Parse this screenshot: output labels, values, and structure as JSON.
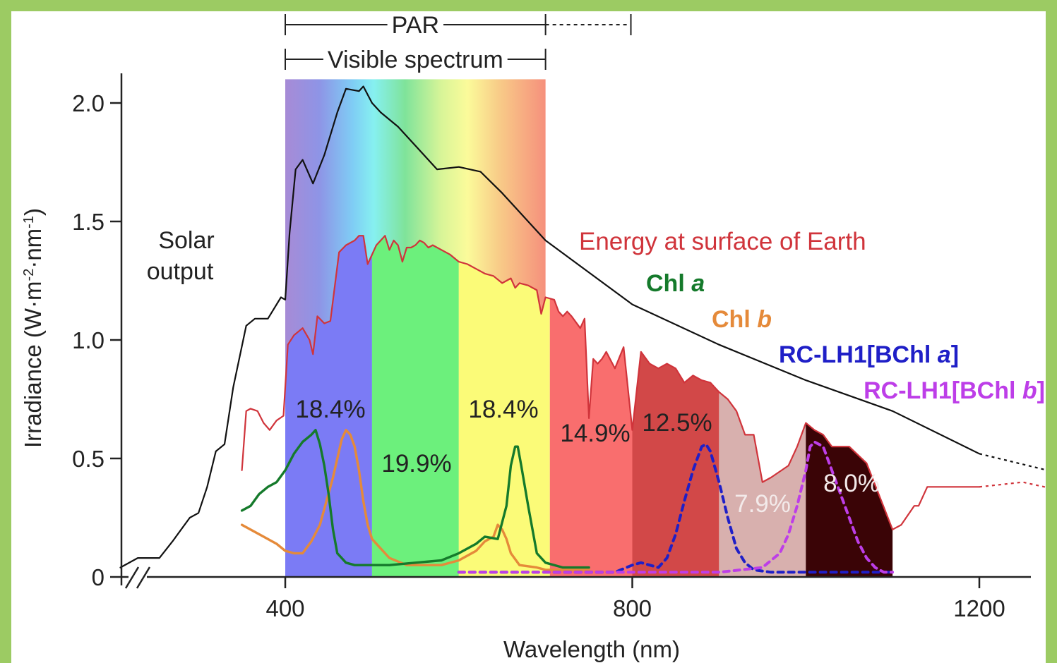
{
  "chart_data": {
    "type": "line",
    "xlabel": "Wavelength (nm)",
    "ylabel": "Irradiance (W·m-2·nm-1)",
    "xlim": [
      210,
      1290
    ],
    "ylim": [
      0,
      2.1
    ],
    "x_ticks": [
      400,
      800,
      1200
    ],
    "x_tick_labels": [
      "400",
      "800",
      "1200"
    ],
    "y_ticks": [
      0,
      0.5,
      1.0,
      1.5,
      2.0
    ],
    "y_tick_labels": [
      "0",
      "0.5",
      "1.0",
      "1.5",
      "2.0"
    ],
    "axis_break": true,
    "ranges": [
      {
        "label": "PAR",
        "from": 400,
        "to": 700,
        "dotted_to": 800
      },
      {
        "label": "Visible spectrum",
        "from": 400,
        "to": 700
      }
    ],
    "visible_spectrum_band": {
      "from": 400,
      "to": 700
    },
    "bands": [
      {
        "from": 400,
        "to": 500,
        "label": "18.4%",
        "color": "#7b7bf5"
      },
      {
        "from": 500,
        "to": 600,
        "label": "19.9%",
        "color": "#6cf07c"
      },
      {
        "from": 600,
        "to": 705,
        "label": "18.4%",
        "color": "#fbfb78"
      },
      {
        "from": 705,
        "to": 800,
        "label": "14.9%",
        "color": "#f96e6e"
      },
      {
        "from": 800,
        "to": 900,
        "label": "12.5%",
        "color": "#d24848"
      },
      {
        "from": 900,
        "to": 1000,
        "label": "7.9%",
        "color": "#d8b0ae"
      },
      {
        "from": 1000,
        "to": 1100,
        "label": "8.0%",
        "color": "#3a0406"
      }
    ],
    "series": [
      {
        "name": "Solar output",
        "color": "#111111",
        "x": [
          210,
          230,
          255,
          270,
          290,
          300,
          310,
          320,
          330,
          340,
          355,
          365,
          380,
          385,
          395,
          400,
          405,
          412,
          420,
          432,
          445,
          460,
          470,
          485,
          490,
          500,
          510,
          530,
          550,
          575,
          600,
          625,
          650,
          700,
          800,
          900,
          1000,
          1100,
          1200
        ],
        "y": [
          0.04,
          0.08,
          0.08,
          0.15,
          0.25,
          0.27,
          0.38,
          0.53,
          0.56,
          0.8,
          1.06,
          1.09,
          1.09,
          1.12,
          1.18,
          1.17,
          1.45,
          1.72,
          1.76,
          1.66,
          1.78,
          1.96,
          2.06,
          2.05,
          2.07,
          2.0,
          1.96,
          1.9,
          1.82,
          1.72,
          1.73,
          1.71,
          1.62,
          1.42,
          1.15,
          0.98,
          0.83,
          0.7,
          0.52
        ],
        "dotted_x": [
          1200,
          1290
        ],
        "dotted_y": [
          0.52,
          0.44
        ]
      },
      {
        "name": "Energy at surface of Earth",
        "color": "#d0343b",
        "x": [
          350,
          355,
          360,
          368,
          375,
          382,
          390,
          398,
          403,
          410,
          420,
          428,
          432,
          437,
          445,
          452,
          462,
          470,
          480,
          485,
          490,
          495,
          500,
          505,
          510,
          515,
          520,
          525,
          530,
          535,
          540,
          545,
          550,
          555,
          560,
          565,
          570,
          580,
          590,
          600,
          610,
          620,
          630,
          640,
          650,
          660,
          665,
          670,
          680,
          690,
          695,
          700,
          710,
          715,
          720,
          725,
          730,
          740,
          745,
          750,
          755,
          760,
          765,
          770,
          780,
          790,
          800,
          810,
          820,
          830,
          840,
          850,
          860,
          870,
          880,
          890,
          900,
          910,
          920,
          930,
          940,
          950,
          960,
          980,
          990,
          1000,
          1010,
          1020,
          1030,
          1050,
          1070,
          1100,
          1110,
          1125,
          1130,
          1140,
          1150,
          1170,
          1200
        ],
        "y": [
          0.45,
          0.7,
          0.71,
          0.7,
          0.65,
          0.62,
          0.66,
          0.68,
          0.98,
          1.02,
          1.05,
          1.0,
          0.94,
          1.1,
          1.07,
          1.08,
          1.37,
          1.4,
          1.42,
          1.44,
          1.44,
          1.32,
          1.36,
          1.4,
          1.42,
          1.44,
          1.38,
          1.42,
          1.4,
          1.33,
          1.39,
          1.39,
          1.4,
          1.42,
          1.41,
          1.39,
          1.4,
          1.38,
          1.36,
          1.33,
          1.32,
          1.3,
          1.28,
          1.27,
          1.24,
          1.26,
          1.22,
          1.24,
          1.23,
          1.21,
          1.11,
          1.18,
          1.17,
          1.12,
          1.1,
          1.12,
          1.1,
          1.05,
          1.09,
          0.67,
          0.92,
          0.9,
          0.92,
          0.95,
          0.88,
          0.97,
          0.62,
          0.95,
          0.9,
          0.88,
          0.9,
          0.88,
          0.82,
          0.85,
          0.83,
          0.82,
          0.78,
          0.75,
          0.7,
          0.6,
          0.6,
          0.4,
          0.42,
          0.47,
          0.55,
          0.65,
          0.62,
          0.6,
          0.55,
          0.55,
          0.48,
          0.2,
          0.22,
          0.3,
          0.3,
          0.38,
          0.38,
          0.38,
          0.38
        ],
        "dotted_x": [
          1200,
          1225,
          1250,
          1275,
          1290
        ],
        "dotted_y": [
          0.38,
          0.39,
          0.4,
          0.38,
          0.36
        ]
      },
      {
        "name": "Chl a",
        "color": "#157a2b",
        "x": [
          350,
          360,
          370,
          380,
          390,
          400,
          410,
          420,
          430,
          435,
          440,
          445,
          450,
          455,
          460,
          470,
          480,
          500,
          520,
          550,
          580,
          600,
          620,
          630,
          645,
          655,
          660,
          665,
          668,
          672,
          680,
          690,
          700,
          720,
          750
        ],
        "y": [
          0.28,
          0.3,
          0.35,
          0.38,
          0.4,
          0.45,
          0.52,
          0.57,
          0.6,
          0.62,
          0.56,
          0.47,
          0.35,
          0.2,
          0.1,
          0.06,
          0.05,
          0.05,
          0.05,
          0.06,
          0.07,
          0.1,
          0.14,
          0.17,
          0.16,
          0.3,
          0.47,
          0.55,
          0.55,
          0.47,
          0.3,
          0.1,
          0.06,
          0.04,
          0.04
        ]
      },
      {
        "name": "Chl b",
        "color": "#e58a3a",
        "x": [
          350,
          370,
          390,
          400,
          410,
          420,
          430,
          440,
          455,
          465,
          470,
          475,
          480,
          485,
          490,
          495,
          500,
          510,
          520,
          540,
          560,
          580,
          600,
          620,
          630,
          640,
          645,
          650,
          655,
          660,
          670,
          690,
          700,
          720,
          750
        ],
        "y": [
          0.22,
          0.18,
          0.14,
          0.11,
          0.1,
          0.1,
          0.15,
          0.22,
          0.42,
          0.58,
          0.62,
          0.6,
          0.55,
          0.45,
          0.32,
          0.22,
          0.16,
          0.12,
          0.08,
          0.05,
          0.05,
          0.05,
          0.07,
          0.11,
          0.15,
          0.17,
          0.22,
          0.2,
          0.16,
          0.1,
          0.05,
          0.04,
          0.03,
          0.03,
          0.03
        ]
      },
      {
        "name": "RC-LH1[BChl a]",
        "color": "#1f1fc7",
        "x": [
          600,
          650,
          700,
          750,
          780,
          800,
          810,
          820,
          830,
          840,
          850,
          860,
          870,
          880,
          885,
          890,
          900,
          910,
          920,
          930,
          940,
          960,
          1000,
          1050,
          1100
        ],
        "y": [
          0.02,
          0.02,
          0.02,
          0.02,
          0.02,
          0.05,
          0.06,
          0.05,
          0.04,
          0.08,
          0.18,
          0.32,
          0.45,
          0.55,
          0.56,
          0.53,
          0.4,
          0.25,
          0.12,
          0.06,
          0.03,
          0.02,
          0.02,
          0.02,
          0.02
        ]
      },
      {
        "name": "RC-LH1[BChl b]",
        "color": "#bd3ee8",
        "x": [
          600,
          700,
          800,
          900,
          950,
          970,
          980,
          990,
          1000,
          1005,
          1010,
          1015,
          1020,
          1025,
          1030,
          1040,
          1050,
          1060,
          1070,
          1080,
          1090,
          1100
        ],
        "y": [
          0.02,
          0.02,
          0.02,
          0.02,
          0.04,
          0.1,
          0.18,
          0.3,
          0.45,
          0.55,
          0.57,
          0.56,
          0.55,
          0.5,
          0.45,
          0.35,
          0.25,
          0.15,
          0.08,
          0.04,
          0.02,
          0.02
        ]
      }
    ],
    "annotations": {
      "solar_output": [
        "Solar",
        "output"
      ],
      "energy_surface": "Energy at surface of Earth",
      "chl_a": {
        "prefix": "Chl ",
        "italic": "a"
      },
      "chl_b": {
        "prefix": "Chl ",
        "italic": "b"
      },
      "rc_lh1_a": {
        "prefix": "RC-LH1[BChl ",
        "italic": "a",
        "suffix": "]"
      },
      "rc_lh1_b": {
        "prefix": "RC-LH1[BChl ",
        "italic": "b",
        "suffix": "]"
      }
    }
  }
}
